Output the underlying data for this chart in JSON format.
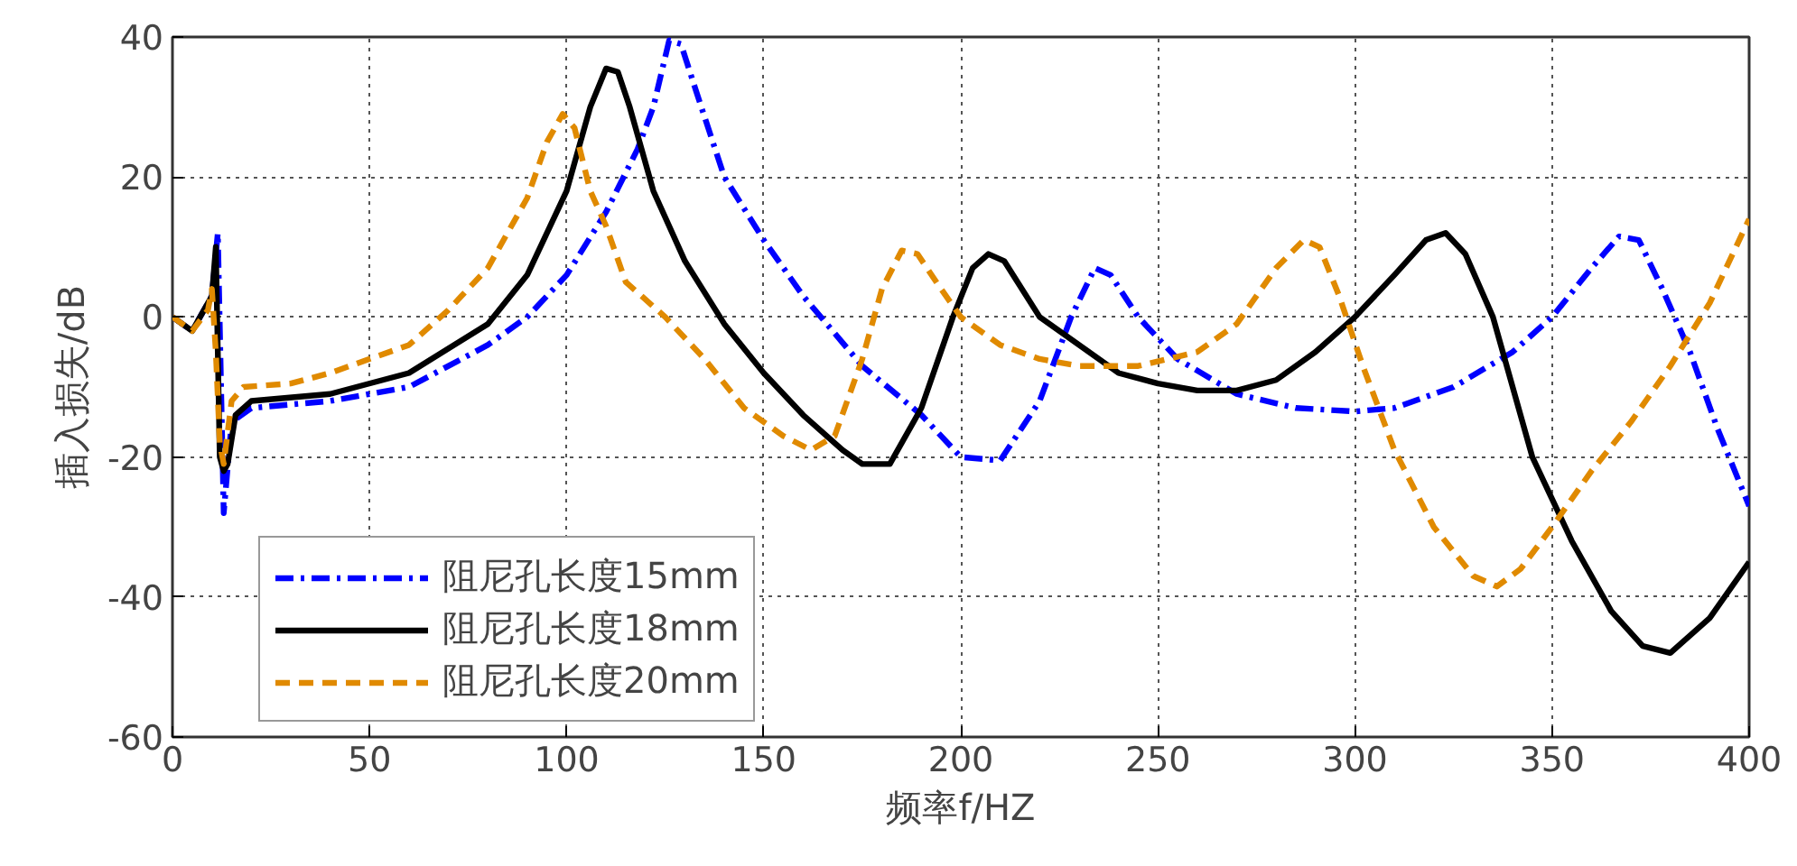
{
  "chart_data": {
    "type": "line",
    "xlabel": "频率f/HZ",
    "ylabel": "插入损失/dB",
    "xlim": [
      0,
      400
    ],
    "ylim": [
      -60,
      40
    ],
    "xticks": [
      0,
      50,
      100,
      150,
      200,
      250,
      300,
      350,
      400
    ],
    "yticks": [
      -60,
      -40,
      -20,
      0,
      20,
      40
    ],
    "grid": true,
    "legend": "bottom left",
    "series": [
      {
        "name": "阻尼孔长度15mm",
        "color": "#0000ff",
        "line_style": "dashdot",
        "x": [
          0,
          5,
          10,
          11.5,
          13,
          15,
          20,
          40,
          60,
          80,
          90,
          100,
          110,
          118,
          122,
          126,
          129,
          133,
          140,
          150,
          160,
          175,
          190,
          200,
          210,
          220,
          228,
          234,
          238,
          245,
          255,
          270,
          285,
          300,
          310,
          325,
          340,
          350,
          360,
          367,
          372,
          378,
          385,
          392,
          400
        ],
        "values": [
          0,
          -2,
          3,
          12,
          -28,
          -15,
          -13,
          -12,
          -10,
          -4,
          0,
          6,
          15,
          24,
          30,
          39.5,
          39,
          32,
          20,
          11,
          3,
          -7,
          -14,
          -20,
          -20.5,
          -12,
          0,
          7,
          6,
          0,
          -6,
          -11,
          -13,
          -13.5,
          -13,
          -10,
          -5,
          0,
          7,
          11.5,
          11,
          4,
          -5,
          -16,
          -27
        ]
      },
      {
        "name": "阻尼孔长度18mm",
        "color": "#000000",
        "line_style": "solid",
        "x": [
          0,
          5,
          10,
          11,
          12,
          13,
          14,
          16,
          20,
          40,
          60,
          80,
          90,
          100,
          106,
          110,
          113,
          116,
          122,
          130,
          140,
          150,
          160,
          170,
          175,
          182,
          190,
          198,
          203,
          207,
          211,
          220,
          230,
          240,
          250,
          260,
          270,
          280,
          290,
          300,
          310,
          318,
          323,
          328,
          335,
          345,
          355,
          365,
          373,
          380,
          390,
          400
        ],
        "values": [
          0,
          -2,
          3,
          10,
          -20,
          -22,
          -21,
          -14,
          -12,
          -11,
          -8,
          -1,
          6,
          18,
          30,
          35.5,
          35,
          30,
          18,
          8,
          -1,
          -8,
          -14,
          -19,
          -21,
          -21,
          -13,
          0,
          7,
          9,
          8,
          0,
          -4,
          -8,
          -9.5,
          -10.5,
          -10.5,
          -9,
          -5,
          0,
          6,
          11,
          12,
          9,
          0,
          -20,
          -32,
          -42,
          -47,
          -48,
          -43,
          -35
        ]
      },
      {
        "name": "阻尼孔长度20mm",
        "color": "#e08a00",
        "line_style": "dashed",
        "x": [
          0,
          5,
          9,
          10,
          11,
          12,
          13,
          15,
          18,
          30,
          40,
          60,
          70,
          80,
          90,
          95,
          99,
          102,
          106,
          110,
          115,
          125,
          135,
          145,
          155,
          162,
          168,
          175,
          180,
          185,
          189,
          195,
          200,
          210,
          220,
          230,
          245,
          260,
          270,
          280,
          287,
          291,
          296,
          302,
          310,
          320,
          330,
          336,
          342,
          350,
          360,
          370,
          380,
          390,
          400
        ],
        "values": [
          0,
          -2,
          1,
          4,
          -5,
          -18,
          -21,
          -12,
          -10,
          -9.5,
          -8,
          -4,
          1,
          7,
          17,
          25,
          29,
          27,
          18,
          13,
          5,
          0,
          -6,
          -13,
          -17,
          -19,
          -17,
          -6,
          4,
          9.5,
          9,
          4,
          0,
          -4,
          -6,
          -7,
          -7,
          -5,
          -1,
          7,
          11,
          10,
          3,
          -7,
          -19,
          -30,
          -37,
          -38.5,
          -36,
          -30,
          -22,
          -15,
          -7,
          2,
          14
        ]
      }
    ]
  }
}
